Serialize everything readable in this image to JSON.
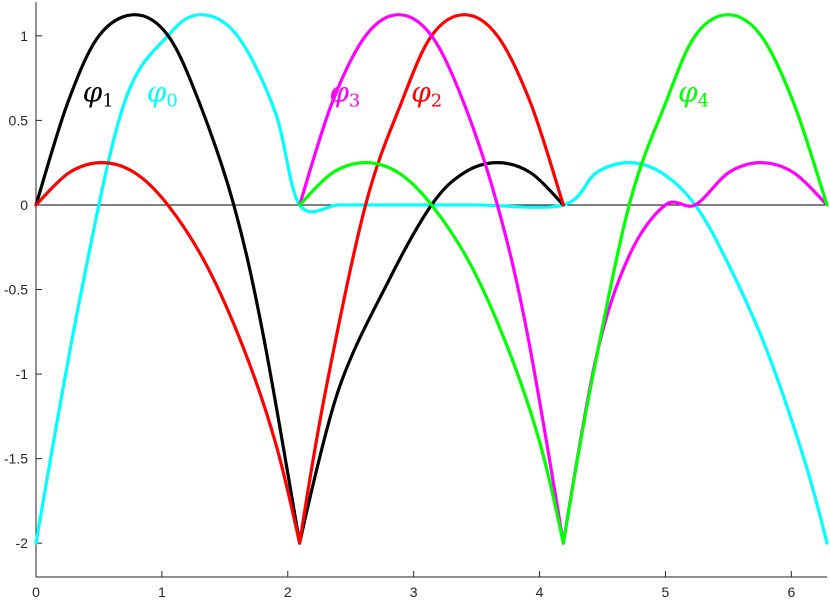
{
  "chart_data": {
    "type": "line",
    "title": "",
    "xlabel": "",
    "ylabel": "",
    "xlim": [
      0,
      6.2832
    ],
    "ylim": [
      -2.2,
      1.2
    ],
    "grid": false,
    "legend": "none",
    "x_ticks": [
      "0",
      "1",
      "2",
      "3",
      "4",
      "5",
      "6"
    ],
    "x_tick_values": [
      0,
      1,
      2,
      3,
      4,
      5,
      6
    ],
    "y_ticks": [
      "-2",
      "-1.5",
      "-1",
      "-0.5",
      "0",
      "0.5",
      "1"
    ],
    "y_tick_values": [
      -2,
      -1.5,
      -1,
      -0.5,
      0,
      0.5,
      1
    ],
    "series": [
      {
        "color": "#00ffff",
        "points": [
          [
            0,
            -2
          ],
          [
            0.35,
            -0.55
          ],
          [
            0.7,
            0.6
          ],
          [
            1.047,
            1.0
          ],
          [
            1.309,
            1.125
          ],
          [
            1.6,
            1.0
          ],
          [
            1.9,
            0.55
          ],
          [
            2.094,
            0
          ],
          [
            2.4,
            0
          ],
          [
            2.618,
            0
          ],
          [
            3.0,
            0
          ],
          [
            3.5,
            0
          ],
          [
            4.189,
            0
          ],
          [
            4.45,
            0.19
          ],
          [
            4.712,
            0.25
          ],
          [
            4.97,
            0.19
          ],
          [
            5.236,
            0
          ],
          [
            5.5,
            -0.35
          ],
          [
            5.8,
            -0.85
          ],
          [
            6.1,
            -1.5
          ],
          [
            6.2832,
            -2
          ]
        ]
      },
      {
        "color": "#000000",
        "points": [
          [
            0,
            0
          ],
          [
            0.25,
            0.6
          ],
          [
            0.5,
            1.0
          ],
          [
            0.785,
            1.125
          ],
          [
            1.05,
            1.0
          ],
          [
            1.3,
            0.6
          ],
          [
            1.571,
            0
          ],
          [
            1.8,
            -0.75
          ],
          [
            2.094,
            -2
          ],
          [
            2.4,
            -1.1
          ],
          [
            2.8,
            -0.45
          ],
          [
            3.142,
            0
          ],
          [
            3.4,
            0.19
          ],
          [
            3.665,
            0.25
          ],
          [
            3.93,
            0.19
          ],
          [
            4.189,
            0
          ]
        ]
      },
      {
        "color": "#ff0000",
        "points": [
          [
            0,
            0
          ],
          [
            0.262,
            0.19
          ],
          [
            0.524,
            0.25
          ],
          [
            0.785,
            0.19
          ],
          [
            1.047,
            0
          ],
          [
            1.35,
            -0.35
          ],
          [
            1.65,
            -0.85
          ],
          [
            1.9,
            -1.4
          ],
          [
            2.094,
            -2
          ],
          [
            2.3,
            -1.1
          ],
          [
            2.618,
            0
          ],
          [
            2.9,
            0.6
          ],
          [
            3.142,
            1.0
          ],
          [
            3.403,
            1.125
          ],
          [
            3.665,
            1.0
          ],
          [
            3.93,
            0.6
          ],
          [
            4.189,
            0
          ]
        ]
      },
      {
        "color": "#ff00ff",
        "points": [
          [
            2.094,
            0
          ],
          [
            2.35,
            0.6
          ],
          [
            2.618,
            1.0
          ],
          [
            2.88,
            1.125
          ],
          [
            3.142,
            1.0
          ],
          [
            3.4,
            0.6
          ],
          [
            3.665,
            0
          ],
          [
            3.9,
            -0.75
          ],
          [
            4.189,
            -2
          ],
          [
            4.45,
            -0.9
          ],
          [
            4.712,
            -0.3
          ],
          [
            5.0,
            0
          ],
          [
            5.236,
            0
          ],
          [
            5.5,
            0.19
          ],
          [
            5.76,
            0.25
          ],
          [
            6.02,
            0.19
          ],
          [
            6.2832,
            0
          ]
        ]
      },
      {
        "color": "#00ff00",
        "points": [
          [
            2.094,
            0
          ],
          [
            2.356,
            0.19
          ],
          [
            2.618,
            0.25
          ],
          [
            2.88,
            0.19
          ],
          [
            3.142,
            0
          ],
          [
            3.45,
            -0.35
          ],
          [
            3.75,
            -0.85
          ],
          [
            4.0,
            -1.4
          ],
          [
            4.189,
            -2
          ],
          [
            4.4,
            -1.1
          ],
          [
            4.712,
            0
          ],
          [
            5.0,
            0.6
          ],
          [
            5.236,
            1.0
          ],
          [
            5.498,
            1.125
          ],
          [
            5.76,
            1.0
          ],
          [
            6.02,
            0.6
          ],
          [
            6.2832,
            0
          ]
        ]
      }
    ],
    "annotations": [
      {
        "symbol": "φ",
        "sub": "1",
        "color": "#000000",
        "x": 0.37,
        "y": 0.67
      },
      {
        "symbol": "φ",
        "sub": "0",
        "color": "#00ffff",
        "x": 0.88,
        "y": 0.67
      },
      {
        "symbol": "φ",
        "sub": "3",
        "color": "#ff00ff",
        "x": 2.33,
        "y": 0.67
      },
      {
        "symbol": "φ",
        "sub": "2",
        "color": "#ff0000",
        "x": 2.98,
        "y": 0.67
      },
      {
        "symbol": "φ",
        "sub": "4",
        "color": "#00ff00",
        "x": 5.1,
        "y": 0.67
      }
    ]
  }
}
